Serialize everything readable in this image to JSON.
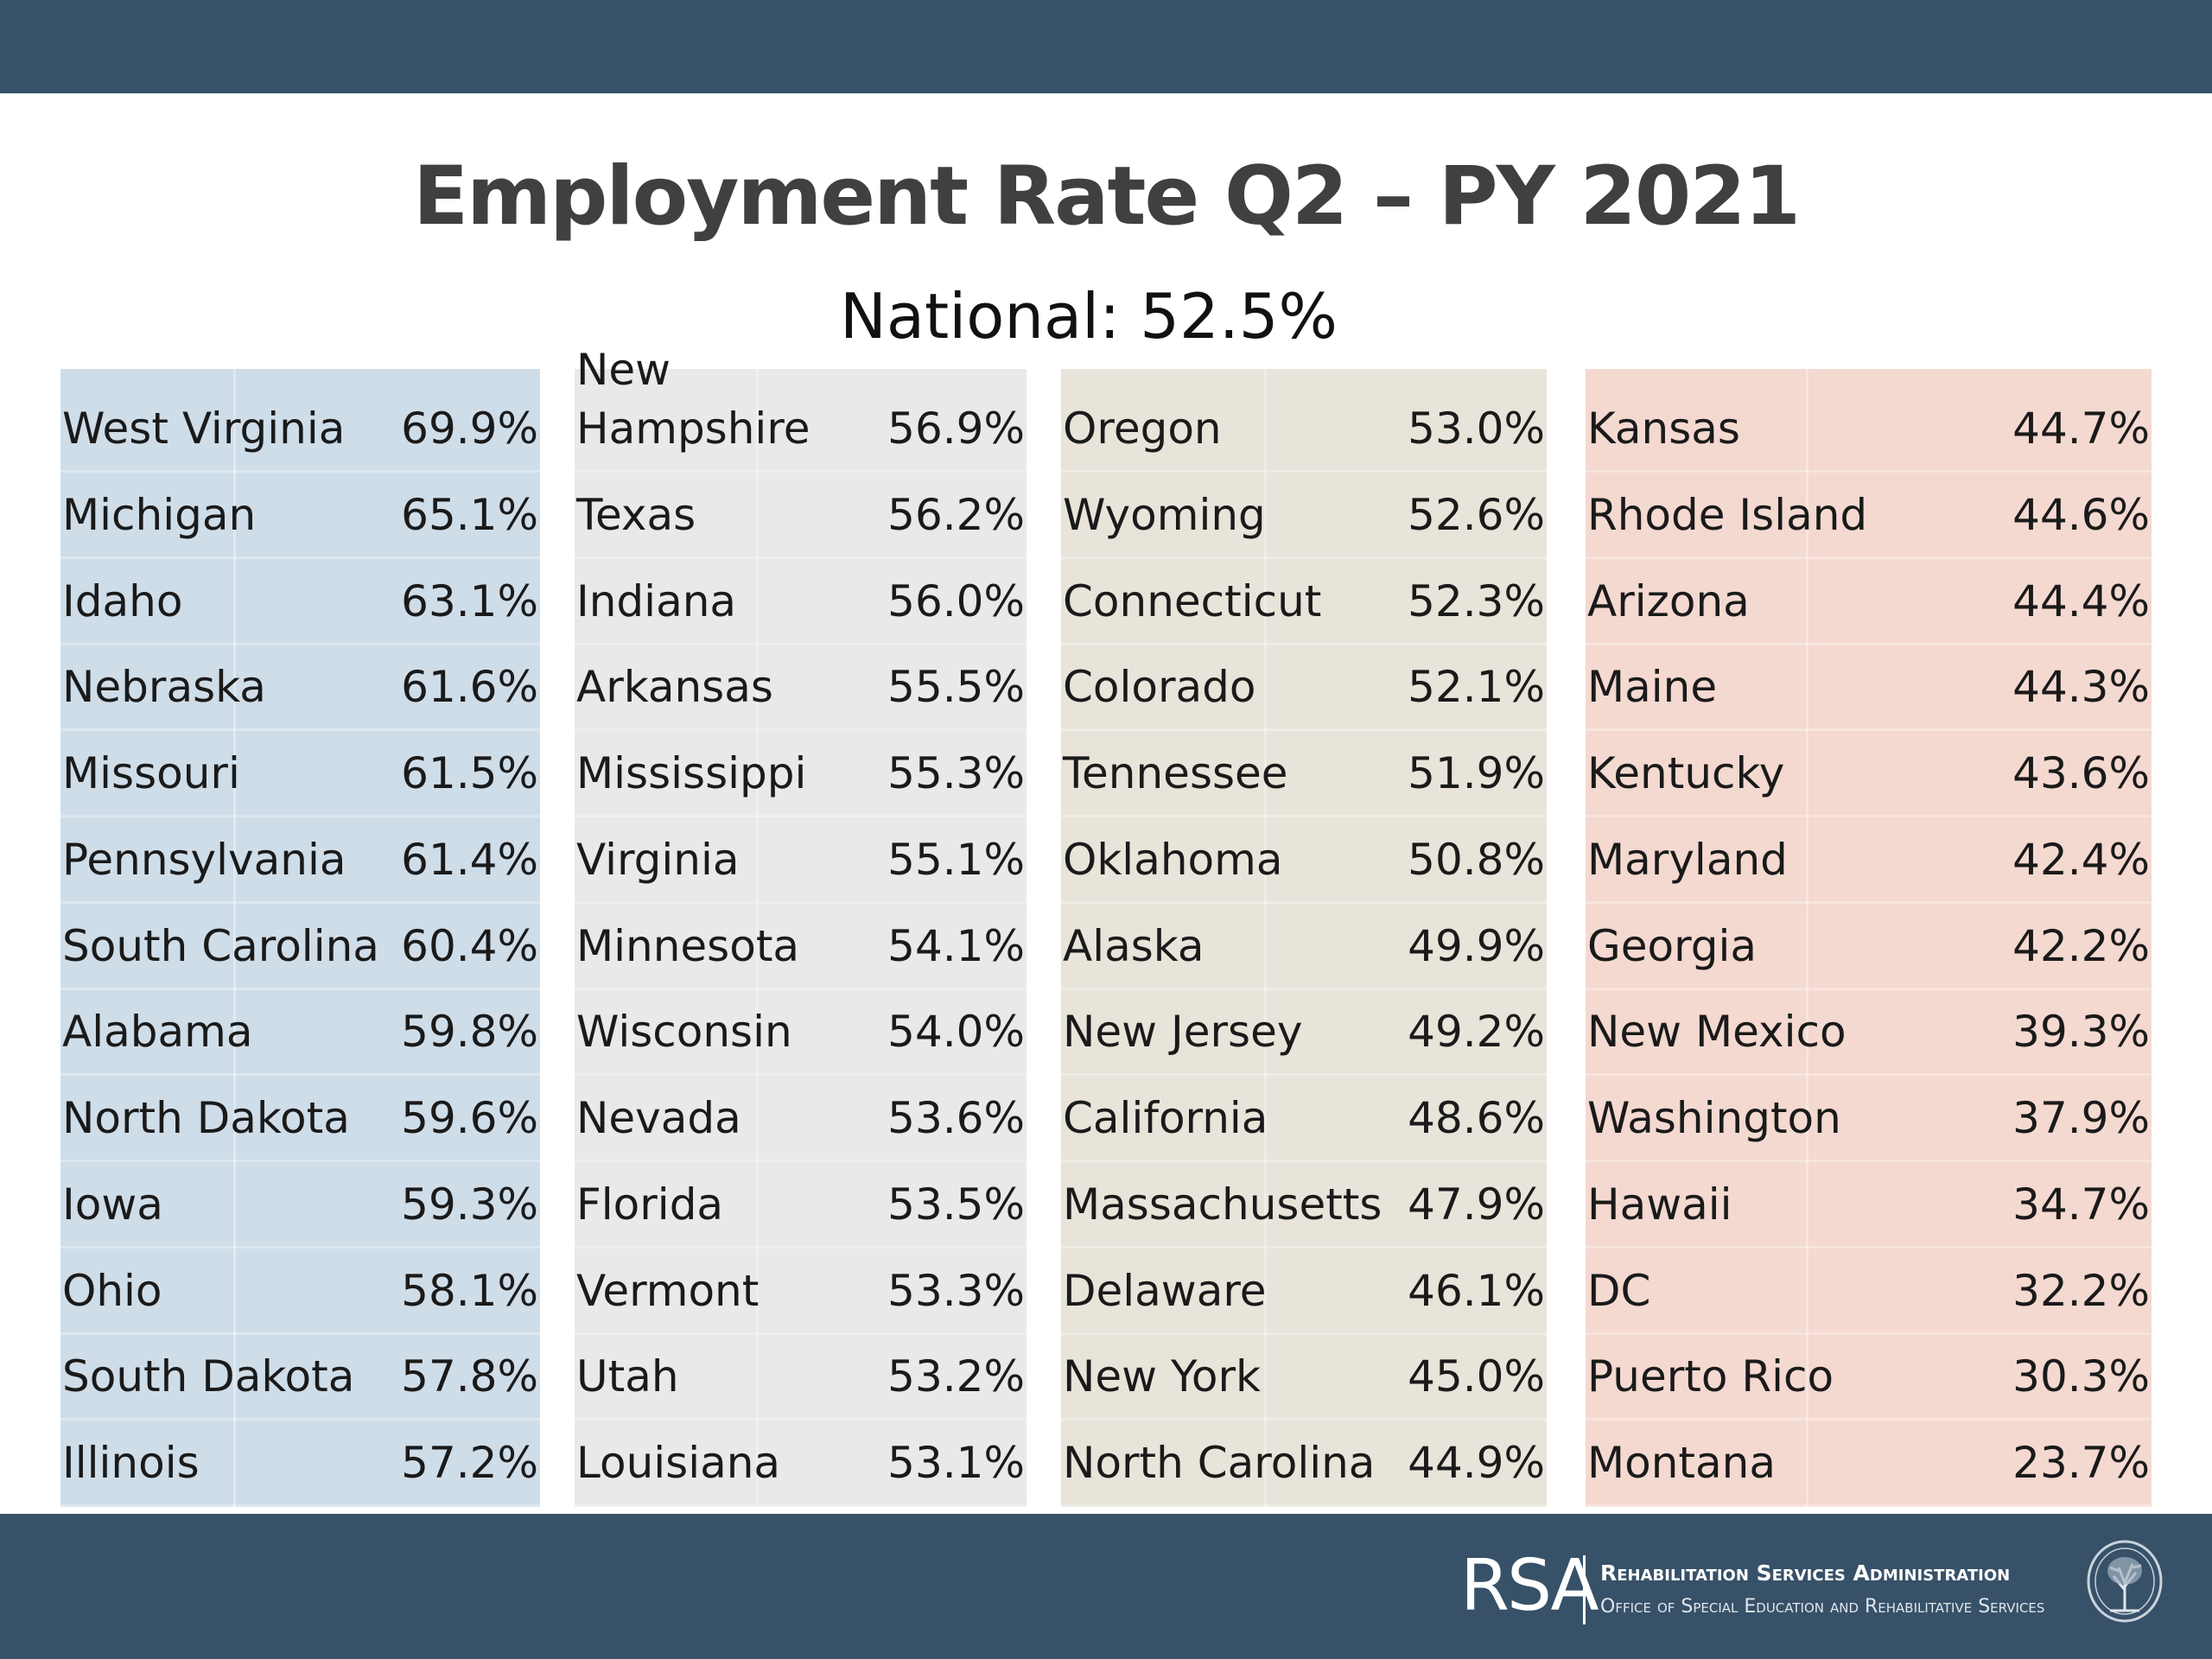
{
  "title": "Employment Rate Q2 – PY 2021",
  "subtitle": "National: 52.5%",
  "columns": [
    {
      "color": "#cfdde9",
      "rows": [
        {
          "state": "West Virginia",
          "rate": "69.9%"
        },
        {
          "state": "Michigan",
          "rate": "65.1%"
        },
        {
          "state": "Idaho",
          "rate": "63.1%"
        },
        {
          "state": "Nebraska",
          "rate": "61.6%"
        },
        {
          "state": "Missouri",
          "rate": "61.5%"
        },
        {
          "state": "Pennsylvania",
          "rate": "61.4%"
        },
        {
          "state": "South Carolina",
          "rate": "60.4%"
        },
        {
          "state": "Alabama",
          "rate": "59.8%"
        },
        {
          "state": "North Dakota",
          "rate": "59.6%"
        },
        {
          "state": "Iowa",
          "rate": "59.3%"
        },
        {
          "state": "Ohio",
          "rate": "58.1%"
        },
        {
          "state": "South Dakota",
          "rate": "57.8%"
        },
        {
          "state": "Illinois",
          "rate": "57.2%"
        }
      ]
    },
    {
      "color": "#e8e9e8",
      "rows": [
        {
          "state": "New Hampshire",
          "rate": "56.9%"
        },
        {
          "state": "Texas",
          "rate": "56.2%"
        },
        {
          "state": "Indiana",
          "rate": "56.0%"
        },
        {
          "state": "Arkansas",
          "rate": "55.5%"
        },
        {
          "state": "Mississippi",
          "rate": "55.3%"
        },
        {
          "state": "Virginia",
          "rate": "55.1%"
        },
        {
          "state": "Minnesota",
          "rate": "54.1%"
        },
        {
          "state": "Wisconsin",
          "rate": "54.0%"
        },
        {
          "state": "Nevada",
          "rate": "53.6%"
        },
        {
          "state": "Florida",
          "rate": "53.5%"
        },
        {
          "state": "Vermont",
          "rate": "53.3%"
        },
        {
          "state": "Utah",
          "rate": "53.2%"
        },
        {
          "state": "Louisiana",
          "rate": "53.1%"
        }
      ]
    },
    {
      "color": "#e8e4da",
      "rows": [
        {
          "state": "Oregon",
          "rate": "53.0%"
        },
        {
          "state": "Wyoming",
          "rate": "52.6%"
        },
        {
          "state": "Connecticut",
          "rate": "52.3%"
        },
        {
          "state": "Colorado",
          "rate": "52.1%"
        },
        {
          "state": "Tennessee",
          "rate": "51.9%"
        },
        {
          "state": "Oklahoma",
          "rate": "50.8%"
        },
        {
          "state": "Alaska",
          "rate": "49.9%"
        },
        {
          "state": "New Jersey",
          "rate": "49.2%"
        },
        {
          "state": "California",
          "rate": "48.6%"
        },
        {
          "state": "Massachusetts",
          "rate": "47.9%"
        },
        {
          "state": "Delaware",
          "rate": "46.1%"
        },
        {
          "state": "New York",
          "rate": "45.0%"
        },
        {
          "state": "North Carolina",
          "rate": "44.9%"
        }
      ]
    },
    {
      "color": "#f4d9d0",
      "rows": [
        {
          "state": "Kansas",
          "rate": "44.7%"
        },
        {
          "state": "Rhode Island",
          "rate": "44.6%"
        },
        {
          "state": "Arizona",
          "rate": "44.4%"
        },
        {
          "state": "Maine",
          "rate": "44.3%"
        },
        {
          "state": "Kentucky",
          "rate": "43.6%"
        },
        {
          "state": "Maryland",
          "rate": "42.4%"
        },
        {
          "state": "Georgia",
          "rate": "42.2%"
        },
        {
          "state": "New Mexico",
          "rate": "39.3%"
        },
        {
          "state": "Washington",
          "rate": "37.9%"
        },
        {
          "state": "Hawaii",
          "rate": "34.7%"
        },
        {
          "state": "DC",
          "rate": "32.2%"
        },
        {
          "state": "Puerto Rico",
          "rate": "30.3%"
        },
        {
          "state": "Montana",
          "rate": "23.7%"
        }
      ]
    }
  ],
  "footer": {
    "logo_text": "RSA",
    "org_name": "Rehabilitation Services Administration",
    "org_subtitle": "Office of Special Education and Rehabilitative Services",
    "seal_icon": "department-seal-icon",
    "bar_color": "#375168"
  }
}
